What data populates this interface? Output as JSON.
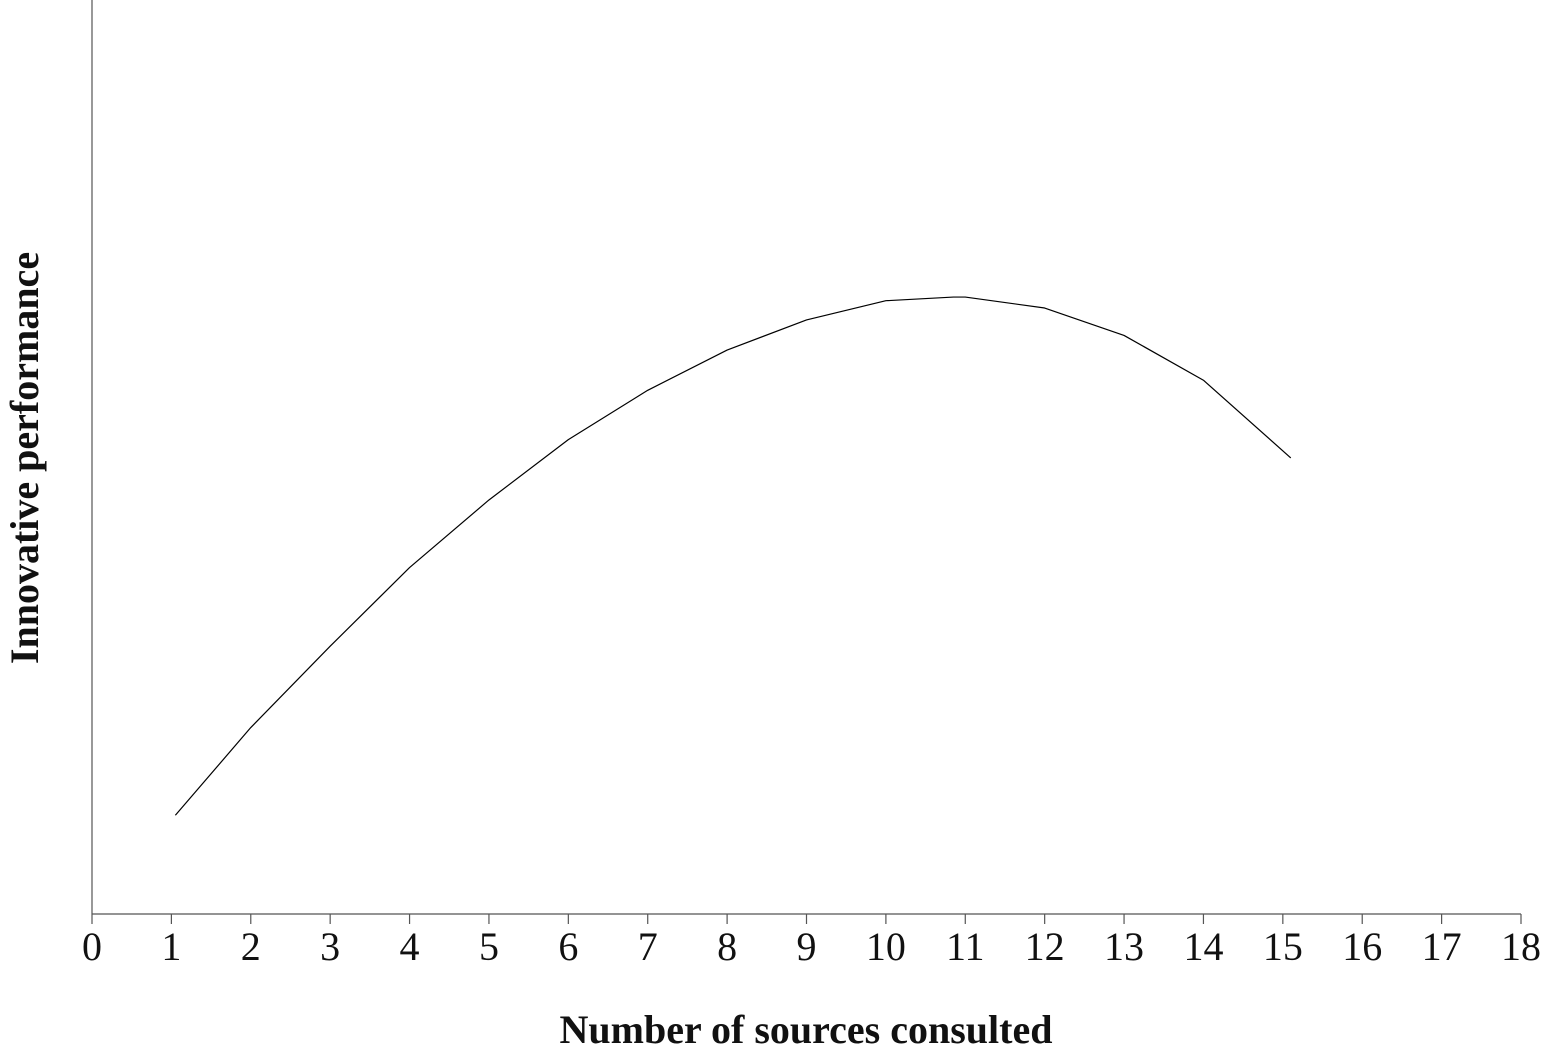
{
  "chart_data": {
    "type": "line",
    "x_label": "Number of sources consulted",
    "y_label": "Innovative performance",
    "x": [
      1.05,
      2,
      3,
      4,
      5,
      6,
      7,
      8,
      9,
      10,
      10.85,
      11,
      12,
      13,
      14,
      15.1
    ],
    "values": [
      10.8,
      20.4,
      29.3,
      37.9,
      45.3,
      51.9,
      57.3,
      61.7,
      65.0,
      67.1,
      67.5,
      67.5,
      66.3,
      63.3,
      58.4,
      49.9
    ],
    "color": "#000000",
    "xlim": [
      0,
      18
    ],
    "xticks": [
      0,
      1,
      2,
      3,
      4,
      5,
      6,
      7,
      8,
      9,
      10,
      11,
      12,
      13,
      14,
      15,
      16,
      17,
      18
    ],
    "ylim": [
      0,
      100
    ]
  }
}
